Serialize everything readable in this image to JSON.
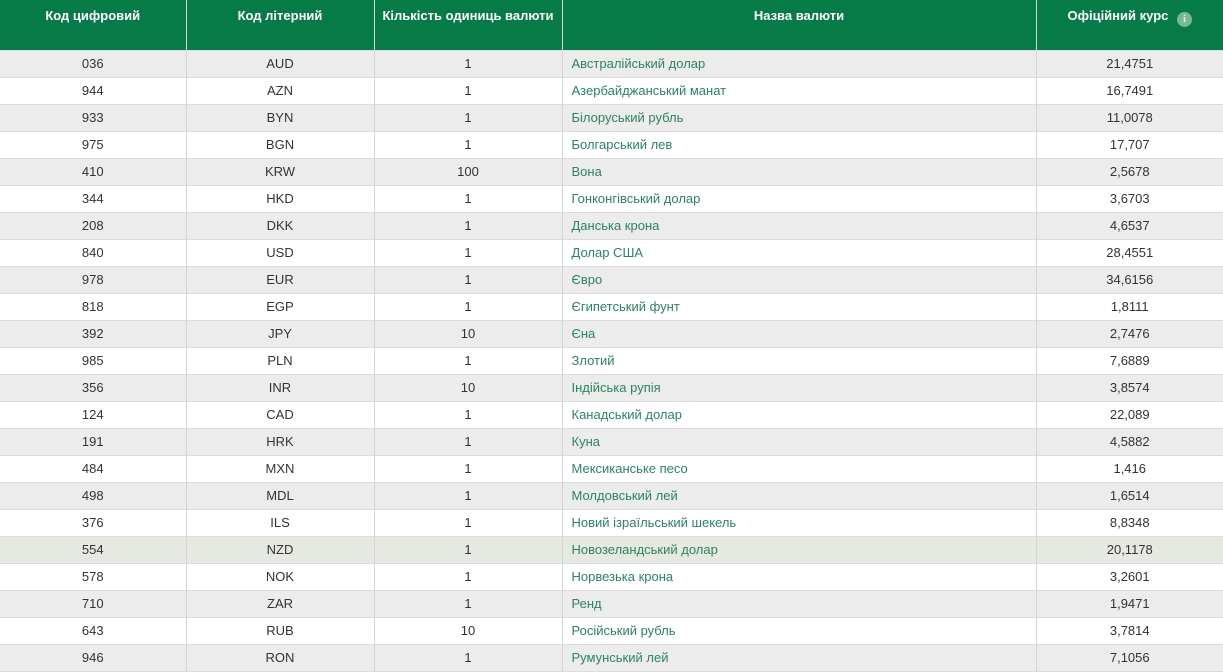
{
  "colors": {
    "header_bg": "#077b47",
    "header_text": "#ffffff",
    "row_bg": "#ffffff",
    "row_alt_bg": "#ececec",
    "row_highlight_bg": "#e6e9e1",
    "border_vertical": "#d4d4d4",
    "border_horizontal": "#dcdcdc",
    "cell_text": "#333333",
    "link_green": "#2a865b",
    "info_icon_bg": "#79b897",
    "info_icon_glyph_color": "#eaf2b0"
  },
  "table": {
    "columns": [
      {
        "label": "Код цифровий"
      },
      {
        "label": "Код літерний"
      },
      {
        "label": "Кількість одиниць валюти"
      },
      {
        "label": "Назва валюти"
      },
      {
        "label": "Офіційний курс"
      }
    ],
    "info_icon_glyph": "i",
    "highlighted_row_index": 18,
    "rows": [
      {
        "num_code": "036",
        "letter_code": "AUD",
        "units": "1",
        "name": "Австралійський долар",
        "rate": "21,4751"
      },
      {
        "num_code": "944",
        "letter_code": "AZN",
        "units": "1",
        "name": "Азербайджанський манат",
        "rate": "16,7491"
      },
      {
        "num_code": "933",
        "letter_code": "BYN",
        "units": "1",
        "name": "Білоруський рубль",
        "rate": "11,0078"
      },
      {
        "num_code": "975",
        "letter_code": "BGN",
        "units": "1",
        "name": "Болгарський лев",
        "rate": "17,707"
      },
      {
        "num_code": "410",
        "letter_code": "KRW",
        "units": "100",
        "name": "Вона",
        "rate": "2,5678"
      },
      {
        "num_code": "344",
        "letter_code": "HKD",
        "units": "1",
        "name": "Гонконгівський долар",
        "rate": "3,6703"
      },
      {
        "num_code": "208",
        "letter_code": "DKK",
        "units": "1",
        "name": "Данська крона",
        "rate": "4,6537"
      },
      {
        "num_code": "840",
        "letter_code": "USD",
        "units": "1",
        "name": "Долар США",
        "rate": "28,4551"
      },
      {
        "num_code": "978",
        "letter_code": "EUR",
        "units": "1",
        "name": "Євро",
        "rate": "34,6156"
      },
      {
        "num_code": "818",
        "letter_code": "EGP",
        "units": "1",
        "name": "Єгипетський фунт",
        "rate": "1,8111"
      },
      {
        "num_code": "392",
        "letter_code": "JPY",
        "units": "10",
        "name": "Єна",
        "rate": "2,7476"
      },
      {
        "num_code": "985",
        "letter_code": "PLN",
        "units": "1",
        "name": "Злотий",
        "rate": "7,6889"
      },
      {
        "num_code": "356",
        "letter_code": "INR",
        "units": "10",
        "name": "Індійська рупія",
        "rate": "3,8574"
      },
      {
        "num_code": "124",
        "letter_code": "CAD",
        "units": "1",
        "name": "Канадський долар",
        "rate": "22,089"
      },
      {
        "num_code": "191",
        "letter_code": "HRK",
        "units": "1",
        "name": "Куна",
        "rate": "4,5882"
      },
      {
        "num_code": "484",
        "letter_code": "MXN",
        "units": "1",
        "name": "Мексиканське песо",
        "rate": "1,416"
      },
      {
        "num_code": "498",
        "letter_code": "MDL",
        "units": "1",
        "name": "Молдовський лей",
        "rate": "1,6514"
      },
      {
        "num_code": "376",
        "letter_code": "ILS",
        "units": "1",
        "name": "Новий ізраїльський шекель",
        "rate": "8,8348"
      },
      {
        "num_code": "554",
        "letter_code": "NZD",
        "units": "1",
        "name": "Новозеландський долар",
        "rate": "20,1178"
      },
      {
        "num_code": "578",
        "letter_code": "NOK",
        "units": "1",
        "name": "Норвезька крона",
        "rate": "3,2601"
      },
      {
        "num_code": "710",
        "letter_code": "ZAR",
        "units": "1",
        "name": "Ренд",
        "rate": "1,9471"
      },
      {
        "num_code": "643",
        "letter_code": "RUB",
        "units": "10",
        "name": "Російський рубль",
        "rate": "3,7814"
      },
      {
        "num_code": "946",
        "letter_code": "RON",
        "units": "1",
        "name": "Румунський лей",
        "rate": "7,1056"
      }
    ]
  }
}
